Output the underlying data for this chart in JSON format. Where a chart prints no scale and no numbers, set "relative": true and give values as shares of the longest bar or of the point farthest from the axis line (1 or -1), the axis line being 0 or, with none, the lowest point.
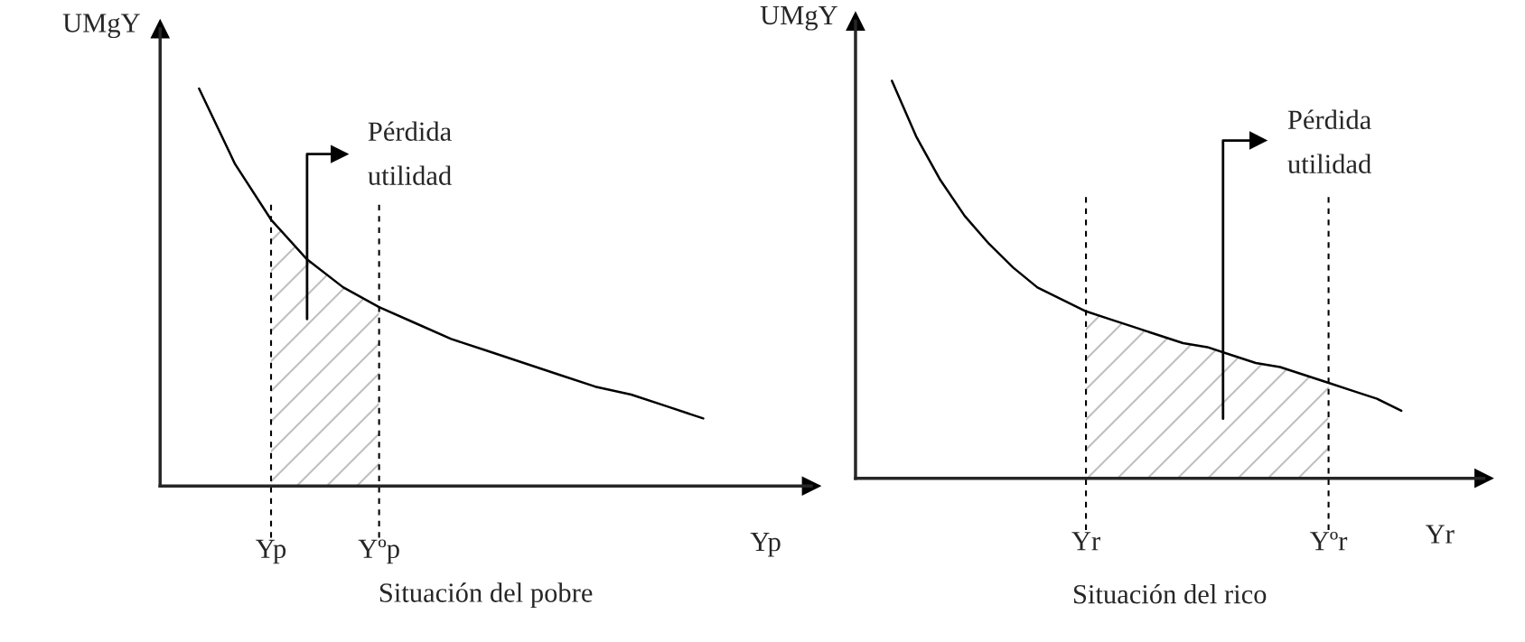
{
  "chart_data": [
    {
      "type": "line",
      "relative": true,
      "title": "Situación del pobre",
      "xlabel": "Yp",
      "ylabel": "UMgY",
      "color": "#000000",
      "categories": [
        null,
        null,
        "Yp",
        null,
        null,
        "Yºp",
        null,
        null,
        null,
        null,
        null,
        null,
        null,
        null,
        null
      ],
      "values": [
        1,
        0.81,
        0.67,
        0.57,
        0.5,
        0.45,
        0.41,
        0.37,
        0.34,
        0.31,
        0.28,
        0.25,
        0.23,
        0.2,
        0.17
      ],
      "ref_lines": [
        {
          "axis": "x",
          "value": "Yp",
          "line_style": "dashed"
        },
        {
          "axis": "x",
          "value": "Yºp",
          "line_style": "dashed"
        }
      ],
      "annotations": [
        "Pérdida\nutilidad"
      ]
    },
    {
      "type": "line",
      "relative": true,
      "title": "Situación del rico",
      "xlabel": "Yr",
      "ylabel": "UMgY",
      "color": "#000000",
      "categories": [
        null,
        null,
        null,
        null,
        null,
        null,
        null,
        null,
        "Yr",
        null,
        null,
        null,
        null,
        null,
        null,
        null,
        null,
        null,
        "Yºr",
        null,
        null,
        null
      ],
      "values": [
        1,
        0.86,
        0.75,
        0.66,
        0.59,
        0.53,
        0.48,
        0.45,
        0.42,
        0.4,
        0.38,
        0.36,
        0.34,
        0.33,
        0.31,
        0.29,
        0.28,
        0.26,
        0.24,
        0.22,
        0.2,
        0.17
      ],
      "ref_lines": [
        {
          "axis": "x",
          "value": "Yr",
          "line_style": "dashed"
        },
        {
          "axis": "x",
          "value": "Yºr",
          "line_style": "dashed"
        }
      ],
      "annotations": [
        "Pérdida\nutilidad"
      ]
    }
  ]
}
